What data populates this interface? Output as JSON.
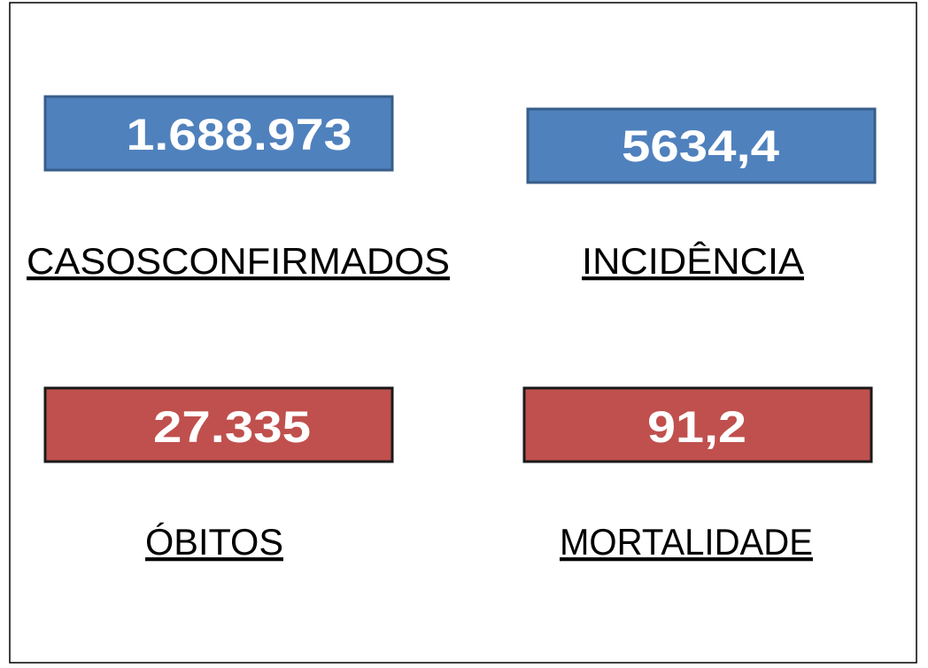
{
  "cards": [
    {
      "value": "1.688.973",
      "label": "CASOSCONFIRMADOS"
    },
    {
      "value": "5634,4",
      "label": "INCIDÊNCIA"
    },
    {
      "value": "27.335",
      "label": "ÓBITOS"
    },
    {
      "value": "91,2",
      "label": "MORTALIDADE"
    }
  ]
}
